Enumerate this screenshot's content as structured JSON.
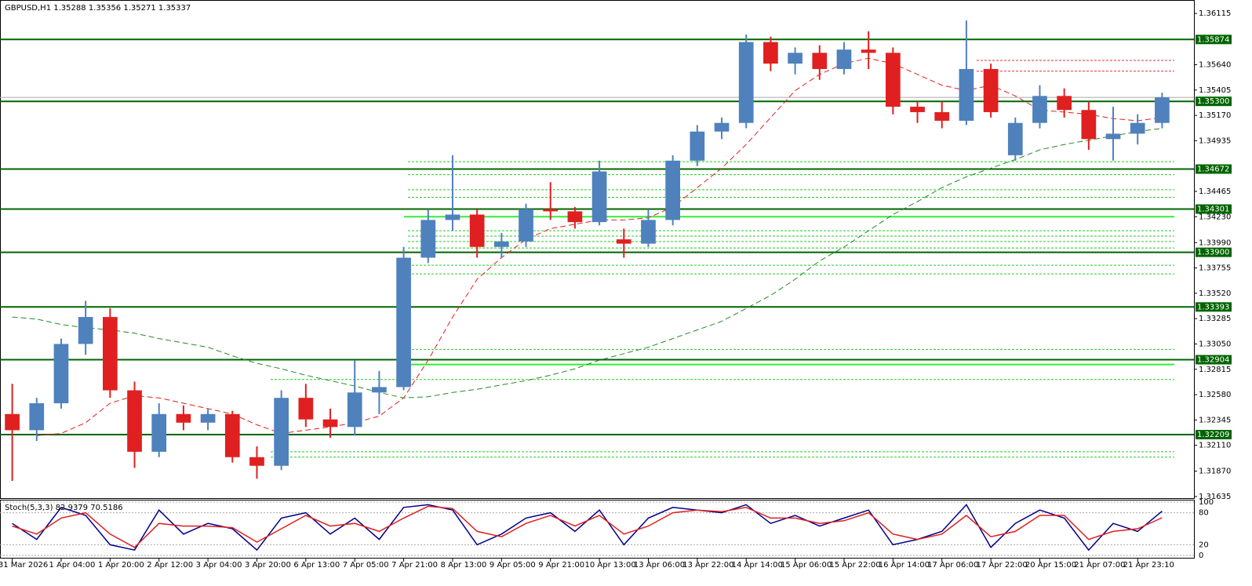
{
  "chart_data": [
    {
      "type": "candlestick",
      "title": "GBPUSD,H1",
      "last_ohlc": [
        1.35288,
        1.35356,
        1.35271,
        1.35337
      ],
      "categories": [
        "31 Mar 2026",
        null,
        "1 Apr 04:00",
        null,
        "1 Apr 20:00",
        null,
        "2 Apr 12:00",
        null,
        "3 Apr 04:00",
        null,
        "3 Apr 20:00",
        null,
        "6 Apr 13:00",
        null,
        "7 Apr 05:00",
        null,
        "7 Apr 21:00",
        null,
        "8 Apr 13:00",
        null,
        "9 Apr 05:00",
        null,
        "9 Apr 21:00",
        null,
        "10 Apr 13:00",
        null,
        "13 Apr 06:00",
        null,
        "13 Apr 22:00",
        null,
        "14 Apr 14:00",
        null,
        "15 Apr 06:00",
        null,
        "15 Apr 22:00",
        null,
        "16 Apr 14:00",
        null,
        "17 Apr 06:00",
        null,
        "17 Apr 22:00",
        null,
        "20 Apr 15:00",
        null,
        "21 Apr 07:00",
        null,
        "21 Apr 23:10",
        null
      ],
      "open": [
        1.324,
        1.3225,
        1.325,
        1.3305,
        1.333,
        1.3262,
        1.3205,
        1.324,
        1.3232,
        1.324,
        1.32,
        1.3192,
        1.3255,
        1.3235,
        1.3228,
        1.326,
        1.3265,
        1.3385,
        1.342,
        1.3425,
        1.3395,
        1.34,
        1.343,
        1.3428,
        1.3418,
        1.3402,
        1.3398,
        1.342,
        1.3475,
        1.3502,
        1.351,
        1.3585,
        1.3565,
        1.3575,
        1.356,
        1.3578,
        1.3575,
        1.3525,
        1.352,
        1.3512,
        1.356,
        1.348,
        1.351,
        1.3535,
        1.3522,
        1.3495,
        1.35,
        1.351
      ],
      "high": [
        1.3268,
        1.3255,
        1.331,
        1.3345,
        1.3338,
        1.327,
        1.325,
        1.3248,
        1.3245,
        1.3243,
        1.321,
        1.3262,
        1.3268,
        1.3245,
        1.329,
        1.328,
        1.3395,
        1.343,
        1.348,
        1.343,
        1.3408,
        1.3435,
        1.3455,
        1.3432,
        1.3475,
        1.3412,
        1.343,
        1.348,
        1.3508,
        1.3515,
        1.3592,
        1.359,
        1.358,
        1.3582,
        1.3585,
        1.3595,
        1.358,
        1.353,
        1.353,
        1.3605,
        1.3565,
        1.3515,
        1.3545,
        1.3542,
        1.353,
        1.3525,
        1.3518,
        1.3538
      ],
      "low": [
        1.3178,
        1.3215,
        1.3245,
        1.3295,
        1.3255,
        1.319,
        1.32,
        1.3225,
        1.3225,
        1.3195,
        1.318,
        1.3188,
        1.3228,
        1.3218,
        1.322,
        1.324,
        1.3262,
        1.338,
        1.341,
        1.3385,
        1.3385,
        1.3395,
        1.342,
        1.3412,
        1.3415,
        1.3385,
        1.3395,
        1.3415,
        1.347,
        1.3495,
        1.3505,
        1.3558,
        1.3555,
        1.355,
        1.3555,
        1.356,
        1.3518,
        1.351,
        1.3505,
        1.3508,
        1.3515,
        1.3475,
        1.3505,
        1.3515,
        1.3485,
        1.3475,
        1.349,
        1.3505
      ],
      "close": [
        1.3225,
        1.325,
        1.3305,
        1.333,
        1.3262,
        1.3205,
        1.324,
        1.3232,
        1.324,
        1.32,
        1.3192,
        1.3255,
        1.3235,
        1.3228,
        1.326,
        1.3265,
        1.3385,
        1.342,
        1.3425,
        1.3395,
        1.34,
        1.343,
        1.3428,
        1.3418,
        1.3465,
        1.3398,
        1.342,
        1.3475,
        1.3502,
        1.351,
        1.3585,
        1.3565,
        1.3575,
        1.356,
        1.3578,
        1.3575,
        1.3525,
        1.352,
        1.3512,
        1.356,
        1.352,
        1.351,
        1.3535,
        1.3522,
        1.3495,
        1.35,
        1.351,
        1.35337
      ],
      "up_color": "#4f81bd",
      "down_color": "#e02020",
      "series": [
        {
          "color": "#e02020",
          "values": [
            null,
            1.322,
            1.3222,
            1.3232,
            1.325,
            1.3257,
            1.3255,
            1.325,
            1.3245,
            1.324,
            1.323,
            1.3222,
            1.3225,
            1.3228,
            1.3232,
            1.3238,
            1.3255,
            1.329,
            1.333,
            1.3365,
            1.3385,
            1.3402,
            1.3412,
            1.3416,
            1.342,
            1.342,
            1.3422,
            1.3432,
            1.345,
            1.3468,
            1.349,
            1.3515,
            1.354,
            1.3555,
            1.3565,
            1.357,
            1.3565,
            1.3555,
            1.3545,
            1.354,
            1.3545,
            1.3535,
            1.3522,
            1.352,
            1.3518,
            1.3514,
            1.3512,
            1.3515
          ]
        },
        {
          "color": "#228b22",
          "values": [
            1.333,
            1.3328,
            1.3323,
            1.332,
            1.3318,
            1.3315,
            1.331,
            1.3306,
            1.3302,
            1.3294,
            1.3287,
            1.3282,
            1.3276,
            1.3271,
            1.3266,
            1.326,
            1.3255,
            1.3256,
            1.326,
            1.3263,
            1.3267,
            1.3271,
            1.3276,
            1.3282,
            1.329,
            1.3296,
            1.3302,
            1.331,
            1.3318,
            1.3326,
            1.3338,
            1.335,
            1.3365,
            1.3382,
            1.3395,
            1.341,
            1.3425,
            1.3437,
            1.345,
            1.346,
            1.3468,
            1.3476,
            1.3485,
            1.349,
            1.3494,
            1.3498,
            1.3502,
            1.3505
          ]
        }
      ],
      "current_price": 1.35337,
      "levels": [
        1.35874,
        {
          "value": 1.353,
          "label": "1.35300"
        },
        1.34672,
        1.34301,
        {
          "value": 1.339,
          "label": "1.33900"
        },
        1.33393,
        1.32904,
        1.32209
      ],
      "green_dotted": [
        1.3474,
        1.3462,
        1.3448,
        1.3441,
        1.341,
        1.3405,
        1.34,
        1.3394,
        1.3378,
        1.337,
        1.33,
        1.3272,
        1.3205,
        1.32
      ],
      "green_solid": [
        1.3423,
        1.3286
      ],
      "red_dotted": [
        1.3568,
        1.3558
      ],
      "ylim": [
        1.3162,
        1.3624
      ],
      "yticks": [
        1.36115,
        {
          "value": 1.3564,
          "label": "1.35640"
        },
        1.35405,
        {
          "value": 1.3517,
          "label": "1.35170"
        },
        1.34935,
        1.34465,
        {
          "value": 1.3423,
          "label": "1.34230"
        },
        {
          "value": 1.3399,
          "label": "1.33990"
        },
        1.33755,
        {
          "value": 1.3352,
          "label": "1.33520"
        },
        1.33285,
        {
          "value": 1.3305,
          "label": "1.33050"
        },
        1.32815,
        {
          "value": 1.3258,
          "label": "1.32580"
        },
        1.32345,
        {
          "value": 1.3211,
          "label": "1.32110"
        },
        {
          "value": 1.3187,
          "label": "1.31870"
        },
        1.31635
      ]
    },
    {
      "type": "line",
      "title": "Stoch(5,3,3)",
      "title_values": [
        82.9379,
        70.5186
      ],
      "series": [
        {
          "color": "#00008b",
          "values": [
            60,
            30,
            90,
            75,
            20,
            10,
            85,
            40,
            60,
            50,
            10,
            70,
            80,
            40,
            70,
            30,
            90,
            95,
            85,
            20,
            40,
            70,
            80,
            45,
            85,
            20,
            70,
            90,
            85,
            80,
            95,
            60,
            75,
            55,
            70,
            85,
            20,
            30,
            45,
            95,
            15,
            60,
            85,
            70,
            10,
            60,
            45,
            82.9379
          ]
        },
        {
          "color": "#e02020",
          "values": [
            55,
            40,
            70,
            80,
            40,
            15,
            60,
            55,
            55,
            52,
            25,
            50,
            75,
            55,
            60,
            45,
            70,
            92,
            88,
            45,
            35,
            60,
            75,
            55,
            75,
            40,
            55,
            80,
            85,
            82,
            90,
            70,
            70,
            60,
            65,
            80,
            40,
            30,
            40,
            75,
            35,
            45,
            75,
            75,
            30,
            45,
            50,
            70.5186
          ]
        }
      ],
      "ylim": [
        0,
        100
      ],
      "yticks": [
        0,
        20,
        80,
        100
      ]
    }
  ]
}
